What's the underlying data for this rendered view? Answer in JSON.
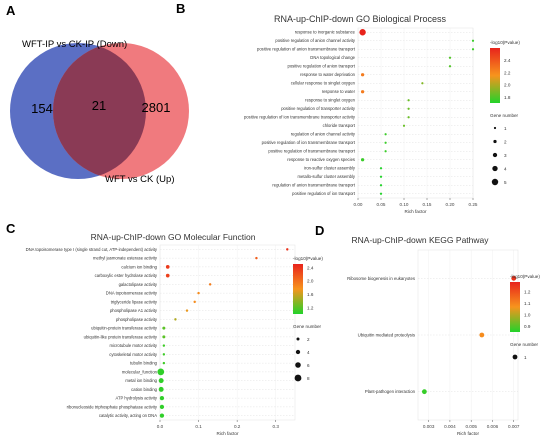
{
  "figure": {
    "panel_labels": [
      "A",
      "B",
      "C",
      "D"
    ]
  },
  "chart_data": [
    {
      "panel": "A",
      "type": "venn",
      "sets": [
        {
          "name": "WFT-IP vs CK-IP (Down)",
          "only": 154,
          "color": "#5b6fc4"
        },
        {
          "name": "WFT vs CK (Up)",
          "only": 2801,
          "color": "#f07a7e"
        }
      ],
      "intersection": 21,
      "intersection_color": "#8a3a55"
    },
    {
      "panel": "B",
      "type": "scatter",
      "title": "RNA-up-ChIP-down GO Biological Process",
      "xlabel": "Rich factor",
      "ylabel": "",
      "xlim": [
        0,
        0.25
      ],
      "x_ticks": [
        "0.00",
        "0.05",
        "0.10",
        "0.15",
        "0.20",
        "0.25"
      ],
      "categories": [
        "response to inorganic substance",
        "positive regulation of anion channel activity",
        "positive regulation of anion transmembrane transport",
        "DNA topological change",
        "positive regulation of anion transport",
        "response to water deprivation",
        "cellular response to singlet oxygen",
        "response to water",
        "response to singlet oxygen",
        "positive regulation of transporter activity",
        "positive regulation of ion transmembrane transporter activity",
        "chloride transport",
        "regulation of anion channel activity",
        "positive regulation of ion transmembrane transport",
        "positive regulation of transmembrane transport",
        "response to reactive oxygen species",
        "iron-sulfur cluster assembly",
        "metallo-sulfur cluster assembly",
        "regulation of anion transmembrane transport",
        "positive regulation of ion transport"
      ],
      "rich_factor": [
        0.01,
        0.25,
        0.25,
        0.2,
        0.2,
        0.01,
        0.14,
        0.01,
        0.11,
        0.11,
        0.11,
        0.1,
        0.06,
        0.06,
        0.06,
        0.01,
        0.05,
        0.05,
        0.05,
        0.05
      ],
      "gene_number": [
        5,
        1,
        1,
        1,
        1,
        2,
        1,
        2,
        1,
        1,
        1,
        1,
        1,
        1,
        1,
        2,
        1,
        1,
        1,
        1
      ],
      "neg_log10_pvalue": [
        2.6,
        1.75,
        1.75,
        1.8,
        1.8,
        2.25,
        1.9,
        2.25,
        1.85,
        1.85,
        1.85,
        1.85,
        1.75,
        1.75,
        1.75,
        1.75,
        1.7,
        1.7,
        1.7,
        1.7
      ],
      "legend_color_title": "-log10(Pvalue)",
      "color_ticks": [
        "2.4",
        "2.2",
        "2.0",
        "1.8"
      ],
      "color_range": [
        1.7,
        2.6
      ],
      "legend_size_title": "Gene number",
      "size_legend": [
        1,
        2,
        3,
        4,
        5
      ]
    },
    {
      "panel": "C",
      "type": "scatter",
      "title": "RNA-up-ChIP-down GO Molecular Function",
      "xlabel": "Rich factor",
      "ylabel": "",
      "xlim": [
        0,
        0.35
      ],
      "x_ticks": [
        "0.0",
        "0.1",
        "0.2",
        "0.3"
      ],
      "categories": [
        "DNA topoisomerase type I (single strand cut, ATP-independent) activity",
        "methyl jasmonate esterase activity",
        "calcium ion binding",
        "carboxylic ester hydrolase activity",
        "galactolipase activity",
        "DNA topoisomerase activity",
        "triglyceride lipase activity",
        "phospholipase A1 activity",
        "phospholipase activity",
        "ubiquitin-protein transferase activity",
        "ubiquitin-like protein transferase activity",
        "microtubule motor activity",
        "cytoskeletal motor activity",
        "tubulin binding",
        "molecular_function",
        "metal ion binding",
        "cation binding",
        "ATP hydrolysis activity",
        "ribonucleoside triphosphate phosphatase activity",
        "catalytic activity, acting on DNA"
      ],
      "rich_factor": [
        0.33,
        0.25,
        0.02,
        0.02,
        0.13,
        0.1,
        0.09,
        0.07,
        0.04,
        0.01,
        0.01,
        0.01,
        0.01,
        0.01,
        0.002,
        0.003,
        0.003,
        0.005,
        0.005,
        0.005
      ],
      "gene_number": [
        1,
        1,
        3,
        3,
        1,
        1,
        1,
        1,
        1,
        2,
        2,
        1,
        1,
        1,
        8,
        5,
        5,
        4,
        4,
        4
      ],
      "neg_log10_pvalue": [
        2.4,
        2.1,
        2.35,
        2.3,
        1.9,
        1.8,
        1.8,
        1.7,
        1.5,
        1.2,
        1.2,
        1.1,
        1.1,
        1.1,
        1.05,
        1.05,
        1.05,
        1.05,
        1.05,
        1.05
      ],
      "legend_color_title": "-log10(Pvalue)",
      "color_ticks": [
        "2.4",
        "2.0",
        "1.6",
        "1.2"
      ],
      "color_range": [
        1.0,
        2.5
      ],
      "legend_size_title": "Gene number",
      "size_legend": [
        2,
        4,
        6,
        8
      ]
    },
    {
      "panel": "D",
      "type": "scatter",
      "title": "RNA-up-ChIP-down  KEGG Pathway",
      "xlabel": "Rich factor",
      "ylabel": "",
      "xlim": [
        0.0025,
        0.0072
      ],
      "x_ticks": [
        "0.003",
        "0.004",
        "0.005",
        "0.006",
        "0.007"
      ],
      "categories": [
        "Ribosome biogenesis in eukaryotes",
        "Ubiquitin mediated proteolysis",
        "Plant-pathogen interaction"
      ],
      "rich_factor": [
        0.007,
        0.0055,
        0.0028
      ],
      "gene_number": [
        1,
        1,
        1
      ],
      "neg_log10_pvalue": [
        1.25,
        1.08,
        0.87
      ],
      "legend_color_title": "-log10(Pvalue)",
      "color_ticks": [
        "1.2",
        "1.1",
        "1.0",
        "0.9"
      ],
      "color_range": [
        0.85,
        1.28
      ],
      "legend_size_title": "Gene number",
      "size_legend": [
        1
      ]
    }
  ]
}
